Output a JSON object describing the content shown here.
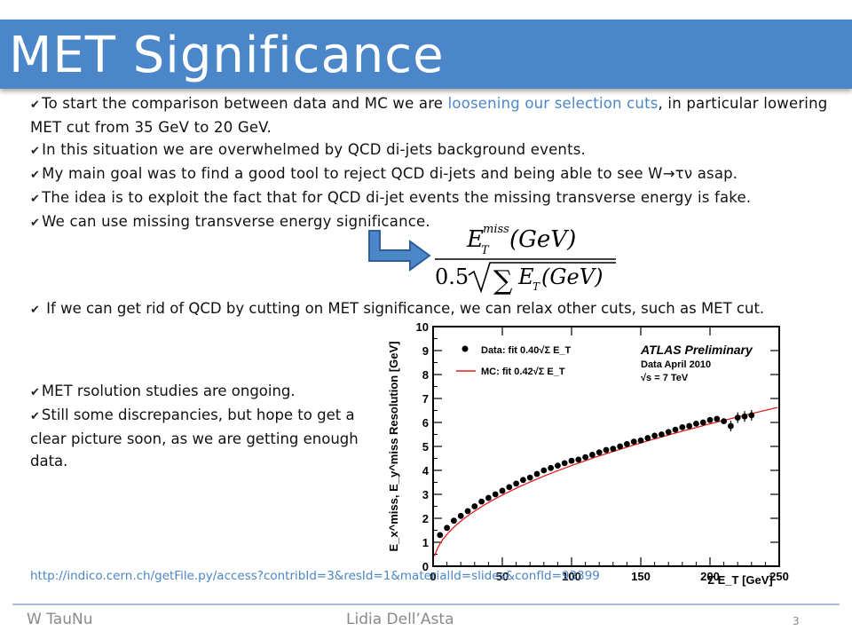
{
  "slide": {
    "title": "MET Significance",
    "bullets": [
      {
        "pre": "To start the comparison between data and MC we are ",
        "highlight": "loosening our selection cuts",
        "post": ", in particular lowering MET cut from 35 GeV to 20 GeV."
      },
      {
        "text": "In this situation we are overwhelmed by QCD di-jets background events."
      },
      {
        "text": "My main goal was to find a good tool to reject QCD di-jets and being able to see W→τν asap."
      },
      {
        "text": "The idea is to exploit the fact that for QCD di-jet events the missing transverse energy is fake."
      },
      {
        "text": "We can use missing transverse energy significance."
      }
    ],
    "bullet_relax": "If we can get rid of QCD by cutting on MET significance, we can relax other cuts, such as MET cut.",
    "bullets_lower": [
      "MET rsolution studies are ongoing.",
      "Still some discrepancies, but hope to get a clear picture soon, as we are getting enough data."
    ],
    "link": "http://indico.cern.ch/getFile.py/access?contribId=3&resId=1&materialId=slides&confId=93399",
    "footer_left": "W TauNu",
    "footer_center": "Lidia Dell’Asta",
    "page_number": "3",
    "accent_color": "#4a86c8",
    "checkmark_icon": "check-icon",
    "arrow_icon": "bent-arrow-icon"
  },
  "formula": {
    "numerator": "Eᵀ^miss(GeV)",
    "denominator": "0.5√∑Eᵀ(GeV)"
  },
  "chart_data": {
    "type": "scatter",
    "xlabel": "Σ E_T [GeV]",
    "ylabel": "E_x^miss, E_y^miss Resolution [GeV]",
    "xlim": [
      0,
      250
    ],
    "ylim": [
      0,
      10
    ],
    "xticks": [
      "0",
      "50",
      "100",
      "150",
      "200",
      "250"
    ],
    "yticks": [
      "0",
      "1",
      "2",
      "3",
      "4",
      "5",
      "6",
      "7",
      "8",
      "9",
      "10"
    ],
    "legend": {
      "data_label": "Data: fit 0.40√Σ E_T",
      "mc_label": "MC: fit 0.42√Σ E_T"
    },
    "annotation": {
      "title": "ATLAS Preliminary",
      "line1": "Data April 2010",
      "line2": "√s = 7 TeV"
    },
    "series": [
      {
        "name": "Data: fit 0.40√Σ E_T",
        "x": [
          5,
          10,
          15,
          20,
          25,
          30,
          35,
          40,
          45,
          50,
          55,
          60,
          65,
          70,
          75,
          80,
          85,
          90,
          95,
          100,
          105,
          110,
          115,
          120,
          125,
          130,
          135,
          140,
          145,
          150,
          155,
          160,
          165,
          170,
          175,
          180,
          185,
          190,
          195,
          200,
          205,
          210,
          215,
          220,
          225,
          230
        ],
        "y": [
          1.3,
          1.6,
          1.9,
          2.1,
          2.3,
          2.5,
          2.7,
          2.85,
          3.0,
          3.15,
          3.3,
          3.45,
          3.6,
          3.7,
          3.85,
          4.0,
          4.1,
          4.2,
          4.3,
          4.4,
          4.45,
          4.55,
          4.65,
          4.75,
          4.85,
          4.9,
          5.0,
          5.1,
          5.2,
          5.25,
          5.35,
          5.45,
          5.5,
          5.6,
          5.7,
          5.8,
          5.85,
          5.95,
          6.0,
          6.1,
          6.15,
          6.05,
          5.85,
          6.2,
          6.25,
          6.3
        ]
      },
      {
        "name": "MC: fit 0.42√Σ E_T",
        "fit_coefficient": 0.42
      }
    ]
  }
}
